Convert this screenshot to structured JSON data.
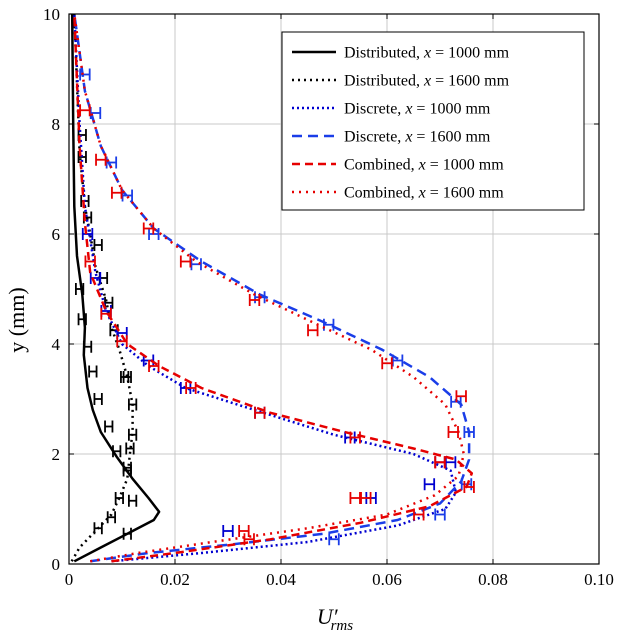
{
  "chart_data": {
    "type": "line",
    "xlabel": "U'rms",
    "ylabel": "y (mm)",
    "xlim": [
      0,
      0.1
    ],
    "ylim": [
      0,
      10
    ],
    "xticks": [
      0,
      0.02,
      0.04,
      0.06,
      0.08,
      0.1
    ],
    "yticks": [
      0,
      2,
      4,
      6,
      8,
      10
    ],
    "xtick_labels": [
      "0",
      "0.02",
      "0.04",
      "0.06",
      "0.08",
      "0.10"
    ],
    "ytick_labels": [
      "0",
      "2",
      "4",
      "6",
      "8",
      "10"
    ],
    "grid": true,
    "legend_position": "top-right",
    "series": [
      {
        "name": "Distributed, x = 1000 mm",
        "label_main": "Distributed,",
        "label_value": "1000 mm",
        "color": "#000000",
        "dash": "solid",
        "width": 2.5,
        "x": [
          0.001,
          0.006,
          0.011,
          0.016,
          0.017,
          0.015,
          0.012,
          0.009,
          0.006,
          0.0045,
          0.0035,
          0.0028,
          0.003,
          0.0025,
          0.0015,
          0.001,
          0.0008,
          0.0006
        ],
        "y": [
          0.05,
          0.3,
          0.55,
          0.8,
          0.95,
          1.2,
          1.55,
          1.95,
          2.4,
          2.8,
          3.2,
          3.8,
          4.3,
          4.9,
          5.6,
          6.5,
          8.0,
          10.0
        ],
        "err_x": [
          0.011,
          0.012,
          0.011,
          0.009,
          0.0075,
          0.0055,
          0.0045,
          0.0035,
          0.0025,
          0.002
        ],
        "err_y": [
          0.55,
          1.15,
          1.75,
          2.05,
          2.5,
          3.0,
          3.5,
          3.95,
          4.45,
          5.0
        ],
        "err_half": 0.0007
      },
      {
        "name": "Distributed, x = 1600 mm",
        "label_main": "Distributed,",
        "label_value": "1600 mm",
        "color": "#000000",
        "dash": "2,4",
        "width": 2.5,
        "x": [
          0.0005,
          0.002,
          0.005,
          0.008,
          0.0095,
          0.011,
          0.0115,
          0.012,
          0.012,
          0.011,
          0.0095,
          0.008,
          0.007,
          0.005,
          0.004,
          0.003,
          0.002,
          0.001
        ],
        "y": [
          0.05,
          0.3,
          0.6,
          0.9,
          1.2,
          1.55,
          2.0,
          2.4,
          2.9,
          3.4,
          3.9,
          4.3,
          4.8,
          5.4,
          6.0,
          6.5,
          7.5,
          10.0
        ],
        "err_x": [
          0.0055,
          0.008,
          0.0095,
          0.011,
          0.0115,
          0.012,
          0.012,
          0.011,
          0.0105,
          0.0085,
          0.0075,
          0.0065,
          0.0055,
          0.0035,
          0.003,
          0.0025,
          0.0025
        ],
        "err_y": [
          0.65,
          0.85,
          1.2,
          1.7,
          2.1,
          2.35,
          2.9,
          3.4,
          3.4,
          4.25,
          4.75,
          5.2,
          5.8,
          6.3,
          6.6,
          7.4,
          7.8
        ],
        "err_half": 0.0007
      },
      {
        "name": "Discrete, x = 1000 mm",
        "label_main": "Discrete,",
        "label_value": "1000 mm",
        "color": "#0000d0",
        "dash": "2,3",
        "width": 2.5,
        "x": [
          0.008,
          0.025,
          0.045,
          0.062,
          0.071,
          0.073,
          0.072,
          0.065,
          0.05,
          0.035,
          0.022,
          0.015,
          0.01,
          0.007,
          0.005,
          0.003,
          0.002,
          0.001
        ],
        "y": [
          0.05,
          0.2,
          0.4,
          0.7,
          1.0,
          1.3,
          1.7,
          2.0,
          2.35,
          2.8,
          3.2,
          3.6,
          4.0,
          4.6,
          5.3,
          6.5,
          8.0,
          10.0
        ],
        "err_x": [
          0.03,
          0.057,
          0.068,
          0.072,
          0.07,
          0.053,
          0.036,
          0.022,
          0.015,
          0.01,
          0.007,
          0.005,
          0.0035
        ],
        "err_y": [
          0.6,
          1.2,
          1.45,
          1.85,
          1.85,
          2.3,
          2.75,
          3.2,
          3.7,
          4.2,
          4.6,
          5.2,
          6.0
        ],
        "err_half": 0.0009
      },
      {
        "name": "Discrete, x = 1600 mm",
        "label_main": "Discrete,",
        "label_value": "1600 mm",
        "color": "#1a3de8",
        "dash": "10,6",
        "width": 2.5,
        "x": [
          0.004,
          0.015,
          0.03,
          0.048,
          0.062,
          0.07,
          0.074,
          0.0755,
          0.0755,
          0.074,
          0.068,
          0.059,
          0.048,
          0.036,
          0.025,
          0.016,
          0.01,
          0.006,
          0.003,
          0.001
        ],
        "y": [
          0.05,
          0.2,
          0.35,
          0.55,
          0.8,
          1.1,
          1.5,
          1.9,
          2.4,
          2.9,
          3.4,
          3.9,
          4.4,
          4.9,
          5.5,
          6.1,
          6.8,
          7.6,
          8.6,
          10.0
        ],
        "err_x": [
          0.05,
          0.07,
          0.075,
          0.0755,
          0.073,
          0.062,
          0.049,
          0.036,
          0.024,
          0.016,
          0.011,
          0.008,
          0.005,
          0.003
        ],
        "err_y": [
          0.45,
          0.9,
          1.45,
          2.4,
          2.95,
          3.7,
          4.35,
          4.85,
          5.45,
          6.0,
          6.7,
          7.3,
          8.2,
          8.9
        ],
        "err_half": 0.0009
      },
      {
        "name": "Combined, x = 1000 mm",
        "label_main": "Combined,",
        "label_value": "1000 mm",
        "color": "#e60000",
        "dash": "8,5",
        "width": 2.5,
        "x": [
          0.008,
          0.02,
          0.038,
          0.055,
          0.068,
          0.075,
          0.076,
          0.073,
          0.065,
          0.052,
          0.038,
          0.025,
          0.017,
          0.011,
          0.007,
          0.004,
          0.003,
          0.002,
          0.001
        ],
        "y": [
          0.05,
          0.2,
          0.45,
          0.75,
          1.05,
          1.4,
          1.65,
          1.9,
          2.1,
          2.4,
          2.75,
          3.2,
          3.6,
          4.0,
          4.6,
          5.3,
          6.2,
          7.6,
          10.0
        ],
        "err_x": [
          0.034,
          0.054,
          0.066,
          0.0755,
          0.07,
          0.054,
          0.036,
          0.023,
          0.016,
          0.01,
          0.007,
          0.004
        ],
        "err_y": [
          0.45,
          1.2,
          0.9,
          1.4,
          1.85,
          2.3,
          2.75,
          3.2,
          3.6,
          4.05,
          4.55,
          5.5
        ],
        "err_half": 0.0009
      },
      {
        "name": "Combined, x = 1600 mm",
        "label_main": "Combined,",
        "label_value": "1600 mm",
        "color": "#e60000",
        "dash": "2,5",
        "width": 2.5,
        "x": [
          0.004,
          0.013,
          0.027,
          0.045,
          0.06,
          0.069,
          0.0735,
          0.0745,
          0.0735,
          0.071,
          0.065,
          0.057,
          0.047,
          0.035,
          0.024,
          0.016,
          0.01,
          0.006,
          0.003,
          0.001
        ],
        "y": [
          0.05,
          0.2,
          0.4,
          0.65,
          0.9,
          1.25,
          1.6,
          2.0,
          2.4,
          2.9,
          3.4,
          3.9,
          4.35,
          4.9,
          5.5,
          6.1,
          6.8,
          7.6,
          8.6,
          10.0
        ],
        "err_x": [
          0.033,
          0.056,
          0.07,
          0.0725,
          0.074,
          0.06,
          0.046,
          0.035,
          0.022,
          0.015,
          0.009,
          0.006,
          0.003
        ],
        "err_y": [
          0.6,
          1.2,
          1.85,
          2.4,
          3.05,
          3.65,
          4.25,
          4.8,
          5.5,
          6.1,
          6.75,
          7.35,
          8.25
        ],
        "err_half": 0.0009
      }
    ]
  }
}
